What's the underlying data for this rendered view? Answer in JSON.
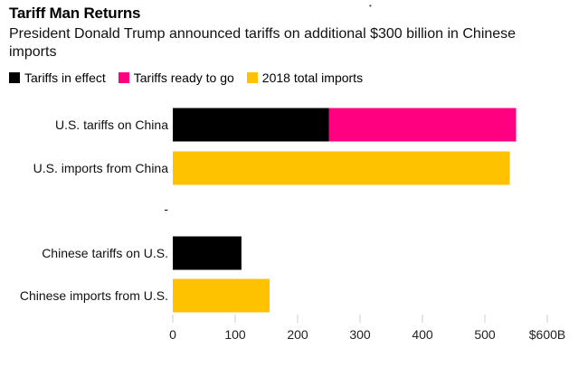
{
  "header": {
    "title": "Tariff Man Returns",
    "subtitle": "President Donald Trump announced tariffs on additional $300 billion in Chinese imports"
  },
  "colors": {
    "tariffs_in_effect": "#000000",
    "tariffs_ready": "#ff0080",
    "total_imports": "#ffc200",
    "tick_line": "#cccccc"
  },
  "chart_data": {
    "type": "bar",
    "orientation": "horizontal",
    "stacked": true,
    "legend": [
      "Tariffs in effect",
      "Tariffs ready to go",
      "2018 total imports"
    ],
    "legend_position": "top-left",
    "categories": [
      "U.S. tariffs on China",
      "U.S. imports from China",
      "-",
      "Chinese tariffs on U.S.",
      "Chinese imports from U.S."
    ],
    "series": [
      {
        "name": "Tariffs in effect",
        "color_key": "tariffs_in_effect",
        "values": [
          250,
          0,
          null,
          110,
          0
        ]
      },
      {
        "name": "Tariffs ready to go",
        "color_key": "tariffs_ready",
        "values": [
          300,
          0,
          null,
          0,
          0
        ]
      },
      {
        "name": "2018 total imports",
        "color_key": "total_imports",
        "values": [
          0,
          540,
          null,
          0,
          155
        ]
      }
    ],
    "xlim": [
      0,
      600
    ],
    "ticks": [
      0,
      100,
      200,
      300,
      400,
      500,
      600
    ],
    "tick_labels": [
      "0",
      "100",
      "200",
      "300",
      "400",
      "500",
      "$600B"
    ],
    "grid": false
  }
}
